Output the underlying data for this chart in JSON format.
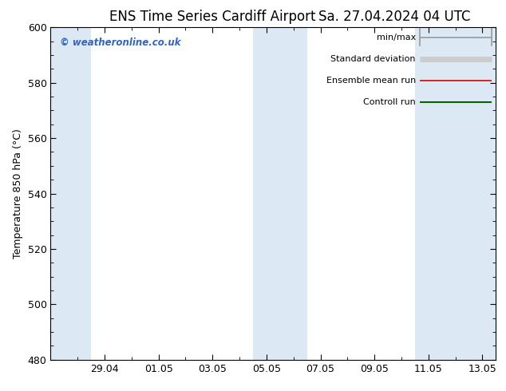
{
  "title_left": "ENS Time Series Cardiff Airport",
  "title_right": "Sa. 27.04.2024 04 UTC",
  "ylabel": "Temperature 850 hPa (°C)",
  "watermark": "© weatheronline.co.uk",
  "ylim": [
    480,
    600
  ],
  "yticks": [
    480,
    500,
    520,
    540,
    560,
    580,
    600
  ],
  "xlim": [
    0,
    16.5
  ],
  "xtick_labels": [
    "29.04",
    "01.05",
    "03.05",
    "05.05",
    "07.05",
    "09.05",
    "11.05",
    "13.05"
  ],
  "xtick_positions": [
    2,
    4,
    6,
    8,
    10,
    12,
    14,
    16
  ],
  "weekend_bands": [
    {
      "start": 0,
      "end": 1.5
    },
    {
      "start": 7.5,
      "end": 9.5
    },
    {
      "start": 13.5,
      "end": 16.5
    }
  ],
  "band_color": "#dce9f5",
  "background_color": "#ffffff",
  "plot_bg_color": "#ffffff",
  "legend_entries": [
    {
      "label": "min/max",
      "color": "#999999",
      "lw": 1.2
    },
    {
      "label": "Standard deviation",
      "color": "#cccccc",
      "lw": 5
    },
    {
      "label": "Ensemble mean run",
      "color": "#dd0000",
      "lw": 1.2
    },
    {
      "label": "Controll run",
      "color": "#006600",
      "lw": 1.5
    }
  ],
  "watermark_color": "#3366bb",
  "title_fontsize": 12,
  "ylabel_fontsize": 9,
  "tick_fontsize": 9,
  "legend_fontsize": 8
}
